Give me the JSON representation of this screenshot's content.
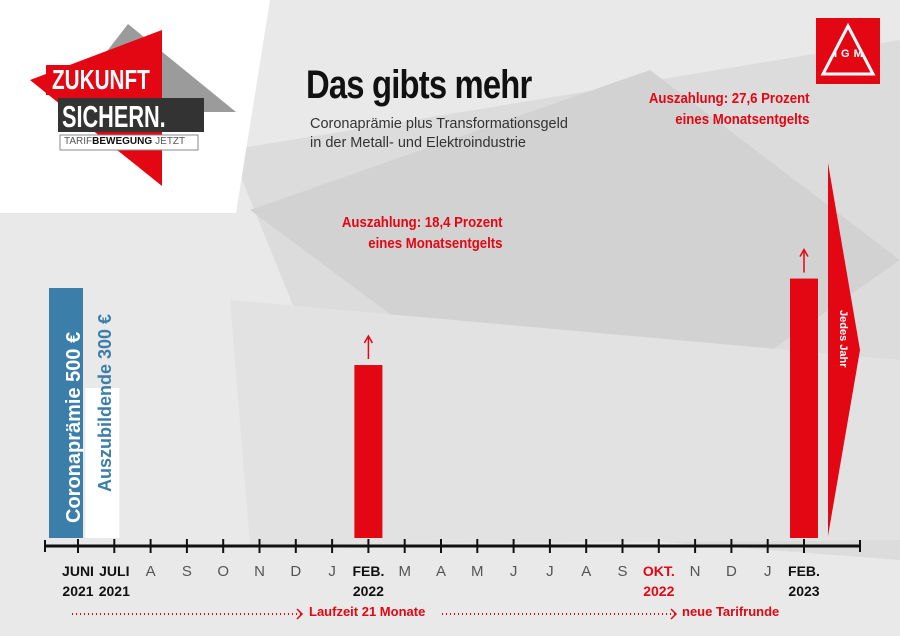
{
  "logo": {
    "line1": "ZUKUNFT",
    "line2": "SICHERN.",
    "tagline_light": "TARIF",
    "tagline_bold": "BEWEGUNG",
    "tagline_end": "JETZT"
  },
  "brand_logo": {
    "icon": "igm-logo",
    "text": "IGM"
  },
  "header": {
    "title": "Das gibts mehr",
    "subtitle_line1": "Coronaprämie plus Transformationsgeld",
    "subtitle_line2": "in der Metall- und Elektroindustrie"
  },
  "side_labels": {
    "corona": "Coronaprämie 500 €",
    "azubi": "Auszubildende 300 €",
    "yearly": "Jedes Jahr"
  },
  "annotations": {
    "feb2022_line1": "Auszahlung: 18,4 Prozent",
    "feb2022_line2": "eines Monatsentgelts",
    "feb2023_line1": "Auszahlung: 27,6 Prozent",
    "feb2023_line2": "eines Monatsentgelts"
  },
  "footer": {
    "laufzeit": "Laufzeit 21 Monate",
    "tarifrunde": "neue Tarifrunde"
  },
  "colors": {
    "red": "#e30613",
    "blue": "#3a7ea9",
    "dark": "#111111",
    "grey": "#555555"
  },
  "chart_data": {
    "type": "bar",
    "title": "Das gibts mehr",
    "x_axis": {
      "ticks": [
        {
          "month": "JUNI",
          "year": "2021"
        },
        {
          "month": "JULI",
          "year": "2021"
        },
        {
          "month": "A",
          "year": ""
        },
        {
          "month": "S",
          "year": ""
        },
        {
          "month": "O",
          "year": ""
        },
        {
          "month": "N",
          "year": ""
        },
        {
          "month": "D",
          "year": ""
        },
        {
          "month": "J",
          "year": ""
        },
        {
          "month": "FEB.",
          "year": "2022"
        },
        {
          "month": "M",
          "year": ""
        },
        {
          "month": "A",
          "year": ""
        },
        {
          "month": "M",
          "year": ""
        },
        {
          "month": "J",
          "year": ""
        },
        {
          "month": "J",
          "year": ""
        },
        {
          "month": "A",
          "year": ""
        },
        {
          "month": "S",
          "year": ""
        },
        {
          "month": "OKT.",
          "year": "2022",
          "highlight": true
        },
        {
          "month": "N",
          "year": ""
        },
        {
          "month": "D",
          "year": ""
        },
        {
          "month": "J",
          "year": ""
        },
        {
          "month": "FEB.",
          "year": "2023"
        }
      ]
    },
    "bars": [
      {
        "label": "Coronaprämie 500 €",
        "month_index": 0,
        "value_eur": 500,
        "color": "#3a7ea9"
      },
      {
        "label": "Auszubildende 300 €",
        "month_index": 1,
        "value_eur": 300,
        "color": "#ffffff"
      },
      {
        "label": "Auszahlung: 18,4 Prozent eines Monatsentgelts",
        "month_index": 8,
        "value_percent": 18.4,
        "color": "#e30613"
      },
      {
        "label": "Auszahlung: 27,6 Prozent eines Monatsentgelts",
        "month_index": 20,
        "value_percent": 27.6,
        "color": "#e30613"
      }
    ],
    "yearly_arrow": {
      "label": "Jedes Jahr",
      "from_month_index": 20
    }
  }
}
